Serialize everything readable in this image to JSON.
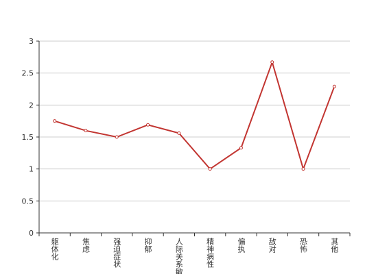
{
  "chart_data": {
    "type": "line",
    "categories": [
      "躯体化",
      "焦虑",
      "强迫症状",
      "抑郁",
      "人际关系敏感",
      "精神病性",
      "偏执",
      "敌对",
      "恐怖",
      "其他"
    ],
    "values": [
      1.75,
      1.6,
      1.5,
      1.69,
      1.56,
      1.0,
      1.33,
      2.67,
      1.0,
      2.29
    ],
    "color": "#c23531",
    "ylim": [
      0,
      3
    ],
    "yticks": [
      0,
      0.5,
      1,
      1.5,
      2,
      2.5,
      3
    ],
    "grid": true
  }
}
